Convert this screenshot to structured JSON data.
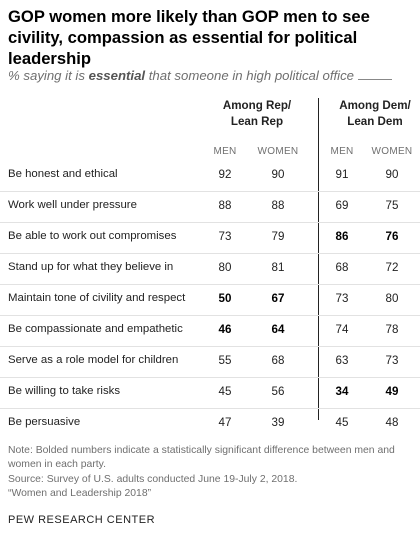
{
  "title": "GOP women more likely than GOP men to see civility, compassion as essential for political leadership",
  "subtitle": {
    "before": "% saying it is ",
    "emphasis": "essential",
    "after": " that someone in high political office"
  },
  "groups": [
    {
      "line1": "Among Rep/",
      "line2": "Lean Rep"
    },
    {
      "line1": "Among Dem/",
      "line2": "Lean Dem"
    }
  ],
  "column_headers": [
    "MEN",
    "WOMEN",
    "MEN",
    "WOMEN"
  ],
  "chart_data": {
    "type": "table",
    "columns": [
      "Rep/Lean Rep men",
      "Rep/Lean Rep women",
      "Dem/Lean Dem men",
      "Dem/Lean Dem women"
    ],
    "rows": [
      {
        "label": "Be honest and ethical",
        "values": [
          92,
          90,
          91,
          90
        ],
        "significant": [
          false,
          false,
          false,
          false
        ]
      },
      {
        "label": "Work well under pressure",
        "values": [
          88,
          88,
          69,
          75
        ],
        "significant": [
          false,
          false,
          false,
          false
        ]
      },
      {
        "label": "Be able to work out compromises",
        "values": [
          73,
          79,
          86,
          76
        ],
        "significant": [
          false,
          false,
          true,
          true
        ]
      },
      {
        "label": "Stand up for what they believe in",
        "values": [
          80,
          81,
          68,
          72
        ],
        "significant": [
          false,
          false,
          false,
          false
        ]
      },
      {
        "label": "Maintain tone of civility and respect",
        "values": [
          50,
          67,
          73,
          80
        ],
        "significant": [
          true,
          true,
          false,
          false
        ]
      },
      {
        "label": "Be compassionate and empathetic",
        "values": [
          46,
          64,
          74,
          78
        ],
        "significant": [
          true,
          true,
          false,
          false
        ]
      },
      {
        "label": "Serve as a role model for children",
        "values": [
          55,
          68,
          63,
          73
        ],
        "significant": [
          false,
          false,
          false,
          false
        ]
      },
      {
        "label": "Be willing to take risks",
        "values": [
          45,
          56,
          34,
          49
        ],
        "significant": [
          false,
          false,
          true,
          true
        ]
      },
      {
        "label": "Be persuasive",
        "values": [
          47,
          39,
          45,
          48
        ],
        "significant": [
          false,
          false,
          false,
          false
        ]
      }
    ]
  },
  "notes": [
    "Note: Bolded numbers indicate a statistically significant difference between men and women in each party.",
    "Source: Survey of U.S. adults conducted June 19-July 2, 2018.",
    "“Women and Leadership 2018”"
  ],
  "brand": "PEW RESEARCH CENTER"
}
